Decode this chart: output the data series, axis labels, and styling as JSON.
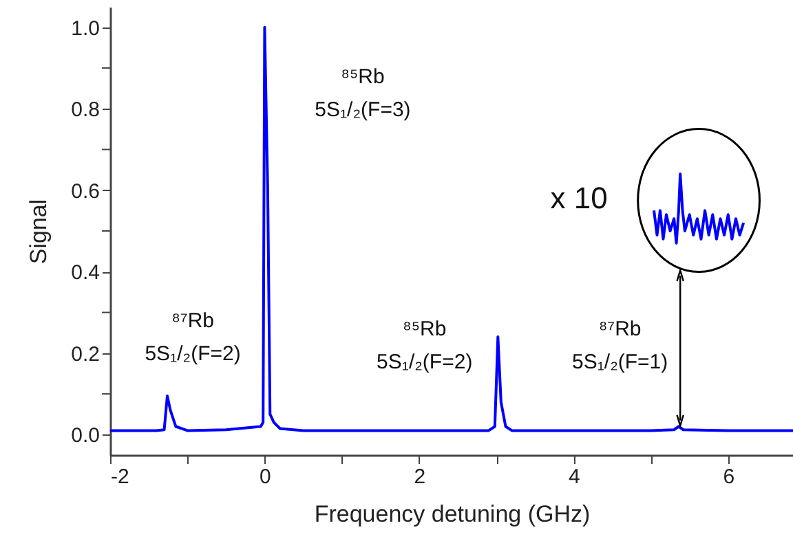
{
  "chart_data": {
    "type": "line",
    "xlabel": "Frequency detuning (GHz)",
    "ylabel": "Signal",
    "xlim": [
      -2,
      6.84
    ],
    "ylim": [
      -0.05,
      1.05
    ],
    "xticks": [
      -2,
      {
        "value": -1,
        "label": null
      },
      0,
      {
        "value": 1,
        "label": null
      },
      2,
      {
        "value": 3,
        "label": null
      },
      4,
      {
        "value": 5,
        "label": null
      },
      6
    ],
    "yticks": [
      {
        "value": 0,
        "label": "0.0"
      },
      {
        "value": 0.1,
        "label": null
      },
      {
        "value": 0.2,
        "label": "0.2"
      },
      {
        "value": 0.3,
        "label": null
      },
      {
        "value": 0.4,
        "label": "0.4"
      },
      {
        "value": 0.5,
        "label": null
      },
      {
        "value": 0.6,
        "label": "0.6"
      },
      {
        "value": 0.7,
        "label": null
      },
      {
        "value": 0.8,
        "label": "0.8"
      },
      {
        "value": 0.9,
        "label": null
      },
      {
        "value": 1,
        "label": "1.0"
      }
    ],
    "grid": false,
    "series": [
      {
        "color": "#0000ff",
        "x": [
          -2,
          -1.4,
          -1.3,
          -1.26,
          -1.22,
          -1.15,
          -1.0,
          -0.5,
          -0.05,
          -0.02,
          0,
          0.04,
          0.07,
          0.12,
          0.2,
          0.5,
          1,
          2,
          2.9,
          2.98,
          3.02,
          3.06,
          3.12,
          3.2,
          4,
          5,
          5.3,
          5.36,
          5.42,
          6,
          6.84
        ],
        "values": [
          0.01,
          0.01,
          0.012,
          0.095,
          0.06,
          0.02,
          0.01,
          0.012,
          0.02,
          0.03,
          1.0,
          0.6,
          0.05,
          0.03,
          0.015,
          0.01,
          0.01,
          0.01,
          0.01,
          0.02,
          0.24,
          0.08,
          0.02,
          0.01,
          0.01,
          0.01,
          0.012,
          0.02,
          0.012,
          0.01,
          0.01
        ]
      },
      {
        "color": "#0000ff",
        "x": [
          5.04,
          5.08,
          5.12,
          5.16,
          5.2,
          5.25,
          5.3,
          5.33,
          5.36,
          5.38,
          5.41,
          5.44,
          5.5,
          5.55,
          5.6,
          5.65,
          5.7,
          5.75,
          5.8,
          5.85,
          5.9,
          5.95,
          6.0,
          6.05,
          6.1,
          6.15,
          6.2
        ],
        "values": [
          0.55,
          0.49,
          0.55,
          0.48,
          0.54,
          0.5,
          0.53,
          0.47,
          0.55,
          0.64,
          0.55,
          0.5,
          0.54,
          0.49,
          0.53,
          0.48,
          0.55,
          0.49,
          0.54,
          0.48,
          0.53,
          0.49,
          0.54,
          0.48,
          0.53,
          0.49,
          0.52
        ]
      }
    ],
    "annotations": [
      "⁸⁷Rb\n5S₁/₂(F=2)",
      "⁸⁵Rb\n5S₁/₂(F=3)",
      "⁸⁵Rb\n5S₁/₂(F=2)",
      "⁸⁷Rb\n5S₁/₂(F=1)",
      "x 10"
    ]
  }
}
